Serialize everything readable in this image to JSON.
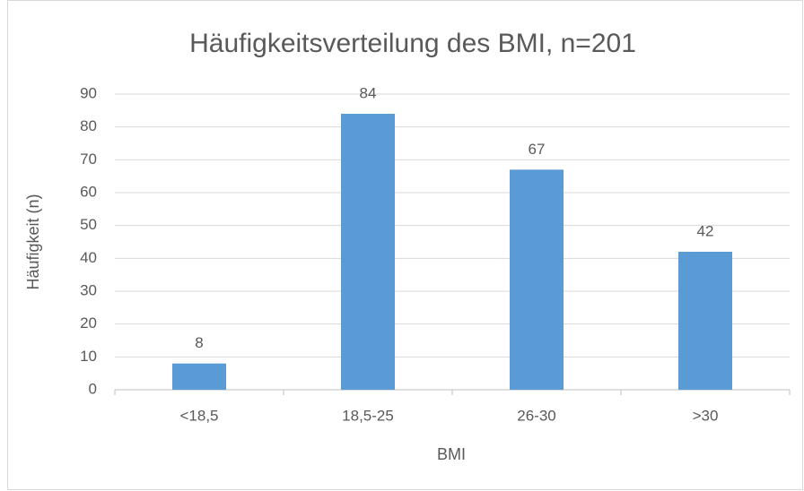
{
  "chart_data": {
    "type": "bar",
    "title": "Häufigkeitsverteilung des BMI, n=201",
    "x_label": "BMI",
    "y_label": "Häufigkeit (n)",
    "categories": [
      "<18,5",
      "18,5-25",
      "26-30",
      ">30"
    ],
    "values": [
      8,
      84,
      67,
      42
    ],
    "color": "#5b9bd5",
    "ylim": [
      0,
      90
    ],
    "yticks": [
      0,
      10,
      20,
      30,
      40,
      50,
      60,
      70,
      80,
      90
    ],
    "grid": true
  }
}
